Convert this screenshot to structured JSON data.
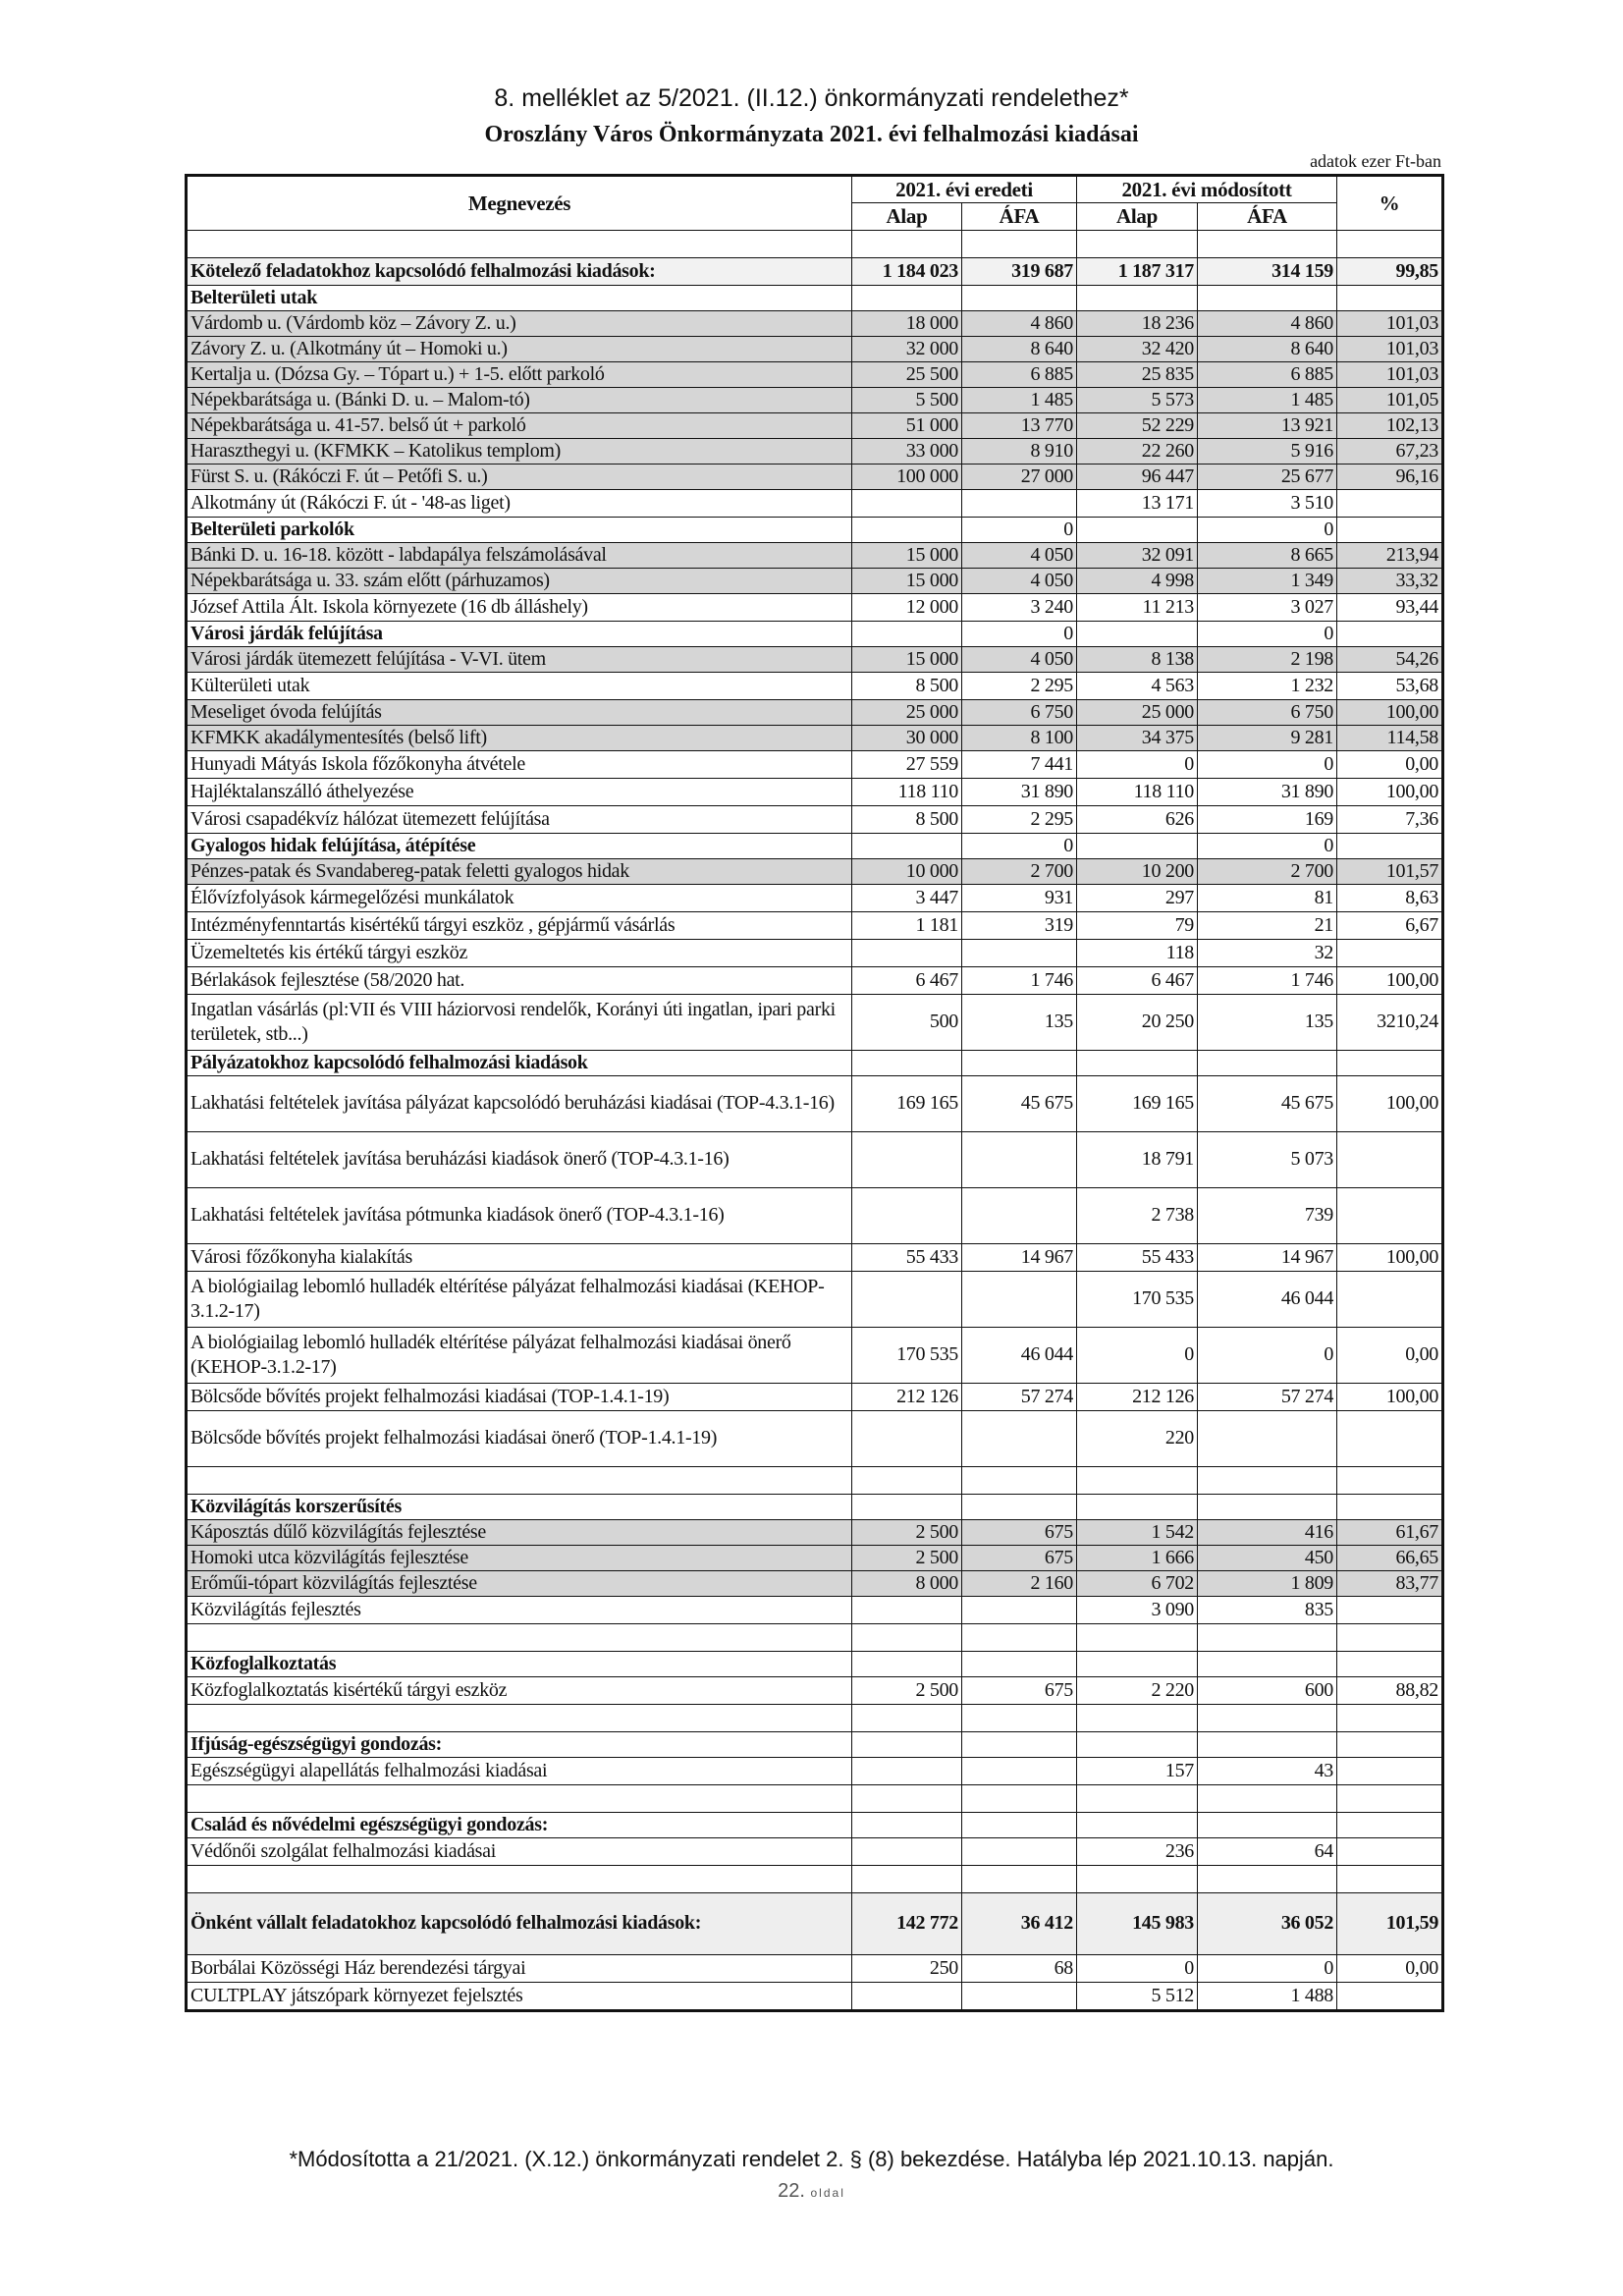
{
  "header": {
    "annex": "8. melléklet az 5/2021. (II.12.) önkormányzati rendelethez*",
    "title": "Oroszlány Város Önkormányzata 2021. évi felhalmozási kiadásai",
    "unit": "adatok ezer Ft-ban"
  },
  "table": {
    "col_name": "Megnevezés",
    "group_original": "2021. évi eredeti",
    "group_modified": "2021. évi módosított",
    "col_percent": "%",
    "sub_alap": "Alap",
    "sub_afa": "ÁFA",
    "rows": [
      {
        "kind": "blank",
        "label": "",
        "v": [
          "",
          "",
          "",
          "",
          ""
        ]
      },
      {
        "kind": "sum",
        "label": "Kötelező feladatokhoz kapcsolódó felhalmozási kiadások:",
        "v": [
          "1 184 023",
          "319 687",
          "1 187 317",
          "314 159",
          "99,85"
        ]
      },
      {
        "kind": "bold",
        "label": "Belterületi utak",
        "v": [
          "",
          "",
          "",
          "",
          ""
        ]
      },
      {
        "kind": "shade",
        "label": "Várdomb u. (Várdomb köz – Závory Z. u.)",
        "v": [
          "18 000",
          "4 860",
          "18 236",
          "4 860",
          "101,03"
        ]
      },
      {
        "kind": "shade",
        "label": "Závory Z. u. (Alkotmány út – Homoki u.)",
        "v": [
          "32 000",
          "8 640",
          "32 420",
          "8 640",
          "101,03"
        ]
      },
      {
        "kind": "shade",
        "label": "Kertalja u. (Dózsa Gy. – Tópart u.) + 1-5. előtt parkoló",
        "v": [
          "25 500",
          "6 885",
          "25 835",
          "6 885",
          "101,03"
        ]
      },
      {
        "kind": "shade",
        "label": "Népekbarátsága u. (Bánki D. u. – Malom-tó)",
        "v": [
          "5 500",
          "1 485",
          "5 573",
          "1 485",
          "101,05"
        ]
      },
      {
        "kind": "shade",
        "label": "Népekbarátsága u. 41-57. belső út + parkoló",
        "v": [
          "51 000",
          "13 770",
          "52 229",
          "13 921",
          "102,13"
        ]
      },
      {
        "kind": "shade",
        "label": "Haraszthegyi u. (KFMKK – Katolikus templom)",
        "v": [
          "33 000",
          "8 910",
          "22 260",
          "5 916",
          "67,23"
        ]
      },
      {
        "kind": "shade",
        "label": "Fürst S. u. (Rákóczi F. út – Petőfi S. u.)",
        "v": [
          "100 000",
          "27 000",
          "96 447",
          "25 677",
          "96,16"
        ]
      },
      {
        "kind": "normal",
        "label": "Alkotmány út (Rákóczi F. út - '48-as liget)",
        "v": [
          "",
          "",
          "13 171",
          "3 510",
          ""
        ]
      },
      {
        "kind": "bold",
        "label": "Belterületi parkolók",
        "v": [
          "",
          "0",
          "",
          "0",
          ""
        ]
      },
      {
        "kind": "shade",
        "label": "Bánki D. u. 16-18. között - labdapálya felszámolásával",
        "v": [
          "15 000",
          "4 050",
          "32 091",
          "8 665",
          "213,94"
        ]
      },
      {
        "kind": "shade",
        "label": "Népekbarátsága u. 33. szám előtt (párhuzamos)",
        "v": [
          "15 000",
          "4 050",
          "4 998",
          "1 349",
          "33,32"
        ]
      },
      {
        "kind": "normal",
        "label": "József Attila Ált. Iskola környezete (16 db álláshely)",
        "v": [
          "12 000",
          "3 240",
          "11 213",
          "3 027",
          "93,44"
        ]
      },
      {
        "kind": "bold",
        "label": "Városi járdák felújítása",
        "v": [
          "",
          "0",
          "",
          "0",
          ""
        ]
      },
      {
        "kind": "shade",
        "label": "Városi járdák ütemezett felújítása  - V-VI. ütem",
        "v": [
          "15 000",
          "4 050",
          "8 138",
          "2 198",
          "54,26"
        ]
      },
      {
        "kind": "normal",
        "label": "Külterületi utak",
        "v": [
          "8 500",
          "2 295",
          "4 563",
          "1 232",
          "53,68"
        ]
      },
      {
        "kind": "shade",
        "label": "Meseliget óvoda felújítás",
        "v": [
          "25 000",
          "6 750",
          "25 000",
          "6 750",
          "100,00"
        ]
      },
      {
        "kind": "shade",
        "label": "KFMKK akadálymentesítés (belső lift)",
        "v": [
          "30 000",
          "8 100",
          "34 375",
          "9 281",
          "114,58"
        ]
      },
      {
        "kind": "normal",
        "label": "Hunyadi Mátyás Iskola főzőkonyha átvétele",
        "v": [
          "27 559",
          "7 441",
          "0",
          "0",
          "0,00"
        ]
      },
      {
        "kind": "normal",
        "label": "Hajléktalanszálló áthelyezése",
        "v": [
          "118 110",
          "31 890",
          "118 110",
          "31 890",
          "100,00"
        ]
      },
      {
        "kind": "normal",
        "label": "Városi csapadékvíz hálózat ütemezett felújítása",
        "v": [
          "8 500",
          "2 295",
          "626",
          "169",
          "7,36"
        ]
      },
      {
        "kind": "bold",
        "label": "Gyalogos hidak felújítása, átépítése",
        "v": [
          "",
          "0",
          "",
          "0",
          ""
        ]
      },
      {
        "kind": "shade",
        "label": "Pénzes-patak és Svandabereg-patak feletti gyalogos hidak",
        "v": [
          "10 000",
          "2 700",
          "10 200",
          "2 700",
          "101,57"
        ]
      },
      {
        "kind": "normal",
        "label": "Élővízfolyások kármegelőzési munkálatok",
        "v": [
          "3 447",
          "931",
          "297",
          "81",
          "8,63"
        ]
      },
      {
        "kind": "normal",
        "label": "Intézményfenntartás kisértékű tárgyi eszköz , gépjármű vásárlás",
        "v": [
          "1 181",
          "319",
          "79",
          "21",
          "6,67"
        ]
      },
      {
        "kind": "normal",
        "label": "Üzemeltetés kis értékű tárgyi eszköz",
        "v": [
          "",
          "",
          "118",
          "32",
          ""
        ]
      },
      {
        "kind": "normal",
        "label": "Bérlakások fejlesztése (58/2020 hat.",
        "v": [
          "6 467",
          "1 746",
          "6 467",
          "1 746",
          "100,00"
        ]
      },
      {
        "kind": "double",
        "label": "Ingatlan vásárlás (pl:VII és VIII háziorvosi rendelők, Korányi úti ingatlan, ipari parki területek, stb...)",
        "v": [
          "500",
          "135",
          "20 250",
          "135",
          "3210,24"
        ]
      },
      {
        "kind": "bold",
        "label": "Pályázatokhoz kapcsolódó felhalmozási kiadások",
        "v": [
          "",
          "",
          "",
          "",
          ""
        ]
      },
      {
        "kind": "double",
        "label": "Lakhatási feltételek javítása pályázat kapcsolódó beruházási kiadásai (TOP-4.3.1-16)",
        "v": [
          "169 165",
          "45 675",
          "169 165",
          "45 675",
          "100,00"
        ]
      },
      {
        "kind": "double",
        "label": "Lakhatási feltételek javítása beruházási kiadások önerő (TOP-4.3.1-16)",
        "v": [
          "",
          "",
          "18 791",
          "5 073",
          ""
        ]
      },
      {
        "kind": "double",
        "label": "Lakhatási feltételek javítása pótmunka kiadások önerő (TOP-4.3.1-16)",
        "v": [
          "",
          "",
          "2 738",
          "739",
          ""
        ]
      },
      {
        "kind": "normal",
        "label": "Városi főzőkonyha kialakítás",
        "v": [
          "55 433",
          "14 967",
          "55 433",
          "14 967",
          "100,00"
        ]
      },
      {
        "kind": "double",
        "label": "A biológiailag lebomló hulladék eltérítése pályázat felhalmozási kiadásai (KEHOP-3.1.2-17)",
        "v": [
          "",
          "",
          "170 535",
          "46 044",
          ""
        ]
      },
      {
        "kind": "double",
        "label": "A biológiailag lebomló hulladék eltérítése pályázat felhalmozási kiadásai önerő (KEHOP-3.1.2-17)",
        "v": [
          "170 535",
          "46 044",
          "0",
          "0",
          "0,00"
        ]
      },
      {
        "kind": "normal",
        "label": "Bölcsőde bővítés projekt felhalmozási kiadásai (TOP-1.4.1-19)",
        "v": [
          "212 126",
          "57 274",
          "212 126",
          "57 274",
          "100,00"
        ]
      },
      {
        "kind": "double",
        "label": "Bölcsőde bővítés projekt felhalmozási kiadásai önerő (TOP-1.4.1-19)",
        "v": [
          "",
          "",
          "220",
          "",
          ""
        ]
      },
      {
        "kind": "blank",
        "label": "",
        "v": [
          "",
          "",
          "",
          "",
          ""
        ]
      },
      {
        "kind": "bold",
        "label": "Közvilágítás korszerűsítés",
        "v": [
          "",
          "",
          "",
          "",
          ""
        ]
      },
      {
        "kind": "shade",
        "label": "Káposztás dűlő közvilágítás fejlesztése",
        "v": [
          "2 500",
          "675",
          "1 542",
          "416",
          "61,67"
        ]
      },
      {
        "kind": "shade",
        "label": "Homoki utca közvilágítás fejlesztése",
        "v": [
          "2 500",
          "675",
          "1 666",
          "450",
          "66,65"
        ]
      },
      {
        "kind": "shade",
        "label": "Erőműi-tópart  közvilágítás fejlesztése",
        "v": [
          "8 000",
          "2 160",
          "6 702",
          "1 809",
          "83,77"
        ]
      },
      {
        "kind": "normal",
        "label": "Közvilágítás fejlesztés",
        "v": [
          "",
          "",
          "3 090",
          "835",
          ""
        ]
      },
      {
        "kind": "blank",
        "label": "",
        "v": [
          "",
          "",
          "",
          "",
          ""
        ]
      },
      {
        "kind": "bold",
        "label": "Közfoglalkoztatás",
        "v": [
          "",
          "",
          "",
          "",
          ""
        ]
      },
      {
        "kind": "normal",
        "label": "Közfoglalkoztatás kisértékű tárgyi eszköz",
        "v": [
          "2 500",
          "675",
          "2 220",
          "600",
          "88,82"
        ]
      },
      {
        "kind": "blank",
        "label": "",
        "v": [
          "",
          "",
          "",
          "",
          ""
        ]
      },
      {
        "kind": "bold",
        "label": "Ifjúság-egészségügyi gondozás:",
        "v": [
          "",
          "",
          "",
          "",
          ""
        ]
      },
      {
        "kind": "normal",
        "label": "Egészségügyi alapellátás felhalmozási kiadásai",
        "v": [
          "",
          "",
          "157",
          "43",
          ""
        ]
      },
      {
        "kind": "blank",
        "label": "",
        "v": [
          "",
          "",
          "",
          "",
          ""
        ]
      },
      {
        "kind": "bold",
        "label": "Család és nővédelmi egészségügyi gondozás:",
        "v": [
          "",
          "",
          "",
          "",
          ""
        ]
      },
      {
        "kind": "normal",
        "label": "Védőnői szolgálat felhalmozási kiadásai",
        "v": [
          "",
          "",
          "236",
          "64",
          ""
        ]
      },
      {
        "kind": "blank",
        "label": "",
        "v": [
          "",
          "",
          "",
          "",
          ""
        ]
      },
      {
        "kind": "total",
        "label": "Önként vállalt feladatokhoz kapcsolódó felhalmozási kiadások:",
        "v": [
          "142 772",
          "36 412",
          "145 983",
          "36 052",
          "101,59"
        ]
      },
      {
        "kind": "normal",
        "label": "Borbálai Közösségi Ház berendezési tárgyai",
        "v": [
          "250",
          "68",
          "0",
          "0",
          "0,00"
        ]
      },
      {
        "kind": "normal",
        "label": "CULTPLAY játszópark környezet fejelsztés",
        "v": [
          "",
          "",
          "5 512",
          "1 488",
          ""
        ]
      }
    ]
  },
  "footer": {
    "note": "*Módosította a 21/2021. (X.12.) önkormányzati rendelet 2. § (8) bekezdése. Hatályba lép 2021.10.13. napján.",
    "page_number": "22.",
    "page_word": "oldal"
  }
}
